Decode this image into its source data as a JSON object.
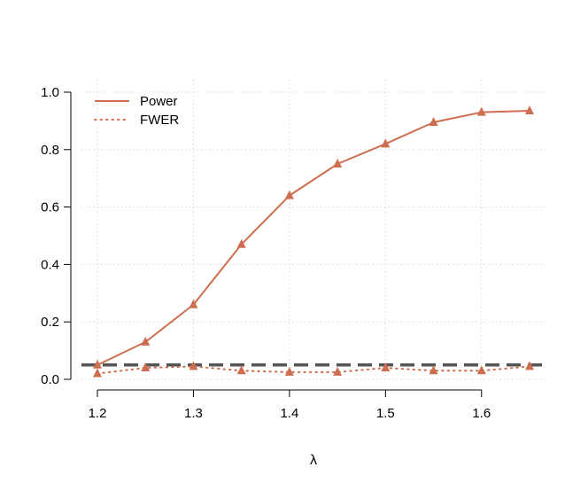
{
  "chart_data": {
    "type": "line",
    "xlabel": "λ",
    "ylabel": "",
    "x": [
      1.2,
      1.25,
      1.3,
      1.35,
      1.4,
      1.45,
      1.5,
      1.55,
      1.6,
      1.65
    ],
    "xlim": [
      1.2,
      1.65
    ],
    "ylim": [
      0,
      1
    ],
    "xticks": [
      "1.2",
      "1.3",
      "1.4",
      "1.5",
      "1.6"
    ],
    "yticks": [
      "0.0",
      "0.2",
      "0.4",
      "0.6",
      "0.8",
      "1.0"
    ],
    "grid": true,
    "legend_position": "top-left",
    "series": [
      {
        "name": "Power",
        "style": "solid",
        "marker": "triangle",
        "color": "#cd6e50",
        "values": [
          0.05,
          0.13,
          0.26,
          0.47,
          0.64,
          0.75,
          0.82,
          0.895,
          0.93,
          0.935
        ]
      },
      {
        "name": "FWER",
        "style": "dotted",
        "marker": "triangle",
        "color": "#cd6e50",
        "values": [
          0.02,
          0.04,
          0.045,
          0.03,
          0.025,
          0.025,
          0.04,
          0.03,
          0.03,
          0.045
        ]
      }
    ],
    "reference_line": {
      "y": 0.05,
      "style": "dashed",
      "color": "#555555"
    }
  }
}
